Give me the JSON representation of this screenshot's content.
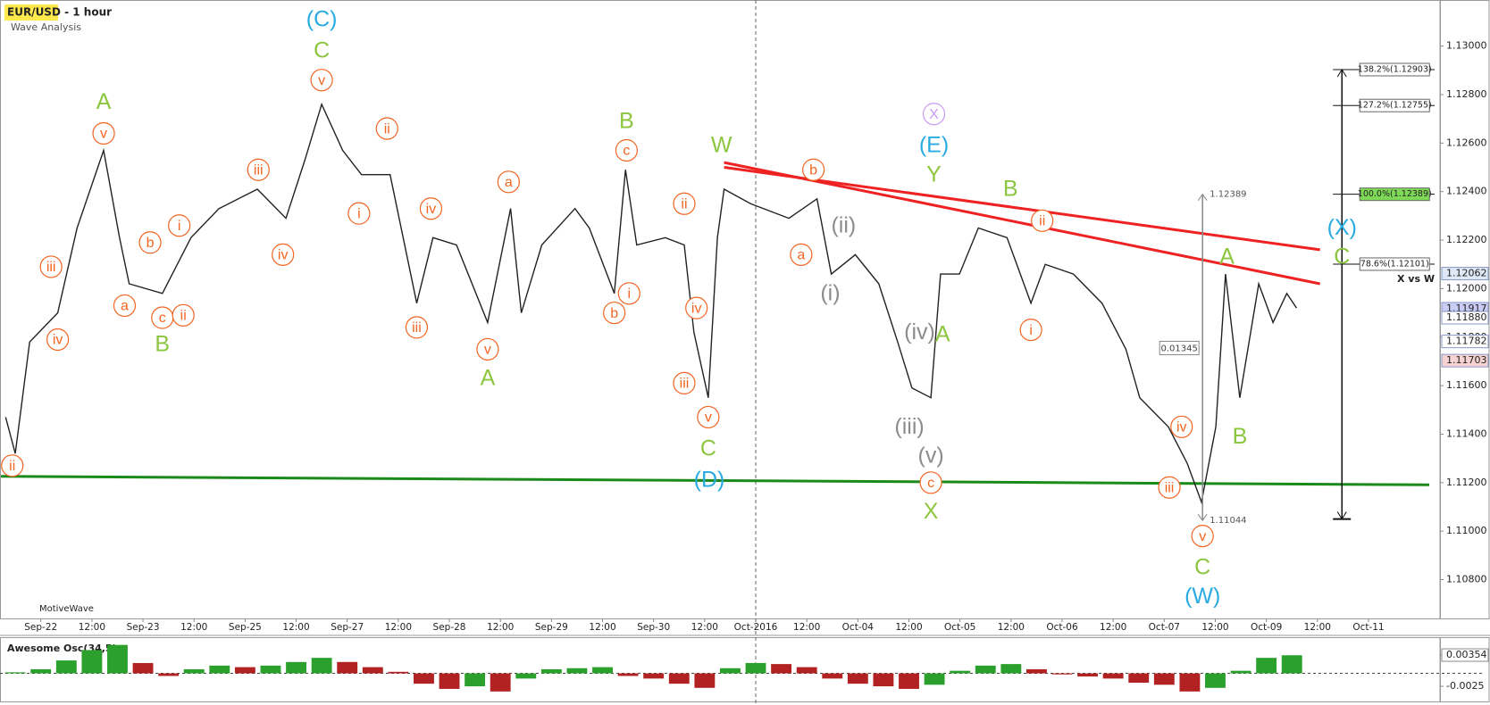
{
  "chart_data": [
    {
      "type": "line",
      "title": "EUR/USD - 1 hour",
      "subtitle": "Wave Analysis",
      "watermark": "MotiveWave",
      "color": "#222222",
      "xlim": [
        -0.8,
        27.4
      ],
      "ylim": [
        1.1064,
        1.1319
      ],
      "xticks": [
        {
          "value": 0,
          "label": "Sep-22"
        },
        {
          "value": 1,
          "label": "12:00"
        },
        {
          "value": 2,
          "label": "Sep-23"
        },
        {
          "value": 3,
          "label": "12:00"
        },
        {
          "value": 4,
          "label": "Sep-25"
        },
        {
          "value": 5,
          "label": "12:00"
        },
        {
          "value": 6,
          "label": "Sep-27"
        },
        {
          "value": 7,
          "label": "12:00"
        },
        {
          "value": 8,
          "label": "Sep-28"
        },
        {
          "value": 9,
          "label": "12:00"
        },
        {
          "value": 10,
          "label": "Sep-29"
        },
        {
          "value": 11,
          "label": "12:00"
        },
        {
          "value": 12,
          "label": "Sep-30"
        },
        {
          "value": 13,
          "label": "12:00"
        },
        {
          "value": 14,
          "label": "Oct-2016"
        },
        {
          "value": 15,
          "label": "12:00"
        },
        {
          "value": 16,
          "label": "Oct-04"
        },
        {
          "value": 17,
          "label": "12:00"
        },
        {
          "value": 18,
          "label": "Oct-05"
        },
        {
          "value": 19,
          "label": "12:00"
        },
        {
          "value": 20,
          "label": "Oct-06"
        },
        {
          "value": 21,
          "label": "12:00"
        },
        {
          "value": 22,
          "label": "Oct-07"
        },
        {
          "value": 23,
          "label": "12:00"
        },
        {
          "value": 24,
          "label": "Oct-09"
        },
        {
          "value": 25,
          "label": "12:00"
        },
        {
          "value": 26,
          "label": "Oct-11"
        }
      ],
      "session_tick": 14,
      "yticks": [
        {
          "value": 1.108,
          "label": "1.10800"
        },
        {
          "value": 1.11,
          "label": "1.11000"
        },
        {
          "value": 1.112,
          "label": "1.11200"
        },
        {
          "value": 1.114,
          "label": "1.11400"
        },
        {
          "value": 1.116,
          "label": "1.11600"
        },
        {
          "value": 1.118,
          "label": "1.11800"
        },
        {
          "value": 1.12,
          "label": "1.12000"
        },
        {
          "value": 1.122,
          "label": "1.12200"
        },
        {
          "value": 1.124,
          "label": "1.12400"
        },
        {
          "value": 1.126,
          "label": "1.12600"
        },
        {
          "value": 1.128,
          "label": "1.12800"
        },
        {
          "value": 1.13,
          "label": "1.13000"
        }
      ],
      "x": [
        -0.69,
        -0.5,
        -0.22,
        0.33,
        0.71,
        1.23,
        1.54,
        1.73,
        2.38,
        2.94,
        3.49,
        4.24,
        4.8,
        5.17,
        5.5,
        5.91,
        6.28,
        6.84,
        7.36,
        7.68,
        8.14,
        8.75,
        9.2,
        9.41,
        9.81,
        10.46,
        10.74,
        11.23,
        11.45,
        11.67,
        12.23,
        12.6,
        12.79,
        13.07,
        13.25,
        13.38,
        13.9,
        14.65,
        15.2,
        15.48,
        15.95,
        16.41,
        16.78,
        17.06,
        17.43,
        17.62,
        17.99,
        18.36,
        18.92,
        19.39,
        19.67,
        20.22,
        20.78,
        21.25,
        21.52,
        22.08,
        22.45,
        22.73,
        23.01,
        23.2,
        23.48,
        23.85,
        24.13,
        24.4,
        24.59
      ],
      "values": [
        1.1147,
        1.1132,
        1.1178,
        1.119,
        1.1225,
        1.1257,
        1.1221,
        1.1202,
        1.1198,
        1.1221,
        1.1233,
        1.1241,
        1.1229,
        1.1253,
        1.1276,
        1.1257,
        1.1247,
        1.1247,
        1.1194,
        1.1221,
        1.1218,
        1.1186,
        1.1233,
        1.119,
        1.1218,
        1.1233,
        1.1225,
        1.1198,
        1.1249,
        1.1218,
        1.1221,
        1.1218,
        1.1182,
        1.1155,
        1.1221,
        1.1241,
        1.1235,
        1.1229,
        1.1237,
        1.1206,
        1.1214,
        1.1202,
        1.1178,
        1.1159,
        1.1155,
        1.1206,
        1.1206,
        1.1225,
        1.1221,
        1.1194,
        1.121,
        1.1206,
        1.1194,
        1.1175,
        1.1155,
        1.1143,
        1.1128,
        1.1112,
        1.1143,
        1.1206,
        1.1155,
        1.1202,
        1.1186,
        1.1198,
        1.1192
      ],
      "trend_lines": [
        {
          "color": "#ee2222",
          "x": [
            13.38,
            25.05
          ],
          "values": [
            1.1252,
            1.1202
          ]
        },
        {
          "color": "#ee2222",
          "x": [
            13.38,
            25.05
          ],
          "values": [
            1.125,
            1.1216
          ]
        },
        {
          "color": "#1a8a1a",
          "x": [
            -0.78,
            27.19
          ],
          "values": [
            1.11226,
            1.11191
          ]
        }
      ],
      "annotations": [
        {
          "text": "ii",
          "x": -0.56,
          "y": 1.1127,
          "color": "#f26522",
          "circled": true
        },
        {
          "text": "iii",
          "x": 0.2,
          "y": 1.1209,
          "color": "#f26522",
          "circled": true
        },
        {
          "text": "iv",
          "x": 0.33,
          "y": 1.1179,
          "color": "#f26522",
          "circled": true
        },
        {
          "text": "A",
          "x": 1.23,
          "y": 1.1277,
          "color": "#8cc63f",
          "circled": false
        },
        {
          "text": "v",
          "x": 1.23,
          "y": 1.1264,
          "color": "#f26522",
          "circled": true
        },
        {
          "text": "a",
          "x": 1.64,
          "y": 1.1193,
          "color": "#f26522",
          "circled": true
        },
        {
          "text": "b",
          "x": 2.14,
          "y": 1.1219,
          "color": "#f26522",
          "circled": true
        },
        {
          "text": "c",
          "x": 2.38,
          "y": 1.1188,
          "color": "#f26522",
          "circled": true
        },
        {
          "text": "ii",
          "x": 2.79,
          "y": 1.1189,
          "color": "#f26522",
          "circled": true
        },
        {
          "text": "i",
          "x": 2.71,
          "y": 1.1226,
          "color": "#f26522",
          "circled": true
        },
        {
          "text": "B",
          "x": 2.38,
          "y": 1.1177,
          "color": "#8cc63f",
          "circled": false
        },
        {
          "text": "iii",
          "x": 4.26,
          "y": 1.1249,
          "color": "#f26522",
          "circled": true
        },
        {
          "text": "iv",
          "x": 4.74,
          "y": 1.1214,
          "color": "#f26522",
          "circled": true
        },
        {
          "text": "(C)",
          "x": 5.5,
          "y": 1.1311,
          "color": "#29abe2",
          "circled": false
        },
        {
          "text": "C",
          "x": 5.5,
          "y": 1.1298,
          "color": "#8cc63f",
          "circled": false
        },
        {
          "text": "v",
          "x": 5.5,
          "y": 1.1286,
          "color": "#f26522",
          "circled": true
        },
        {
          "text": "i",
          "x": 6.23,
          "y": 1.1231,
          "color": "#f26522",
          "circled": true
        },
        {
          "text": "ii",
          "x": 6.78,
          "y": 1.1266,
          "color": "#f26522",
          "circled": true
        },
        {
          "text": "iii",
          "x": 7.36,
          "y": 1.1184,
          "color": "#f26522",
          "circled": true
        },
        {
          "text": "iv",
          "x": 7.64,
          "y": 1.1233,
          "color": "#f26522",
          "circled": true
        },
        {
          "text": "v",
          "x": 8.75,
          "y": 1.1175,
          "color": "#f26522",
          "circled": true
        },
        {
          "text": "A",
          "x": 8.75,
          "y": 1.1163,
          "color": "#8cc63f",
          "circled": false
        },
        {
          "text": "a",
          "x": 9.16,
          "y": 1.1244,
          "color": "#f26522",
          "circled": true
        },
        {
          "text": "B",
          "x": 11.47,
          "y": 1.1269,
          "color": "#8cc63f",
          "circled": false
        },
        {
          "text": "c",
          "x": 11.47,
          "y": 1.1257,
          "color": "#f26522",
          "circled": true
        },
        {
          "text": "b",
          "x": 11.23,
          "y": 1.119,
          "color": "#f26522",
          "circled": true
        },
        {
          "text": "i",
          "x": 11.52,
          "y": 1.1198,
          "color": "#f26522",
          "circled": true
        },
        {
          "text": "ii",
          "x": 12.6,
          "y": 1.1235,
          "color": "#f26522",
          "circled": true
        },
        {
          "text": "iv",
          "x": 12.84,
          "y": 1.1192,
          "color": "#f26522",
          "circled": true
        },
        {
          "text": "iii",
          "x": 12.6,
          "y": 1.1161,
          "color": "#f26522",
          "circled": true
        },
        {
          "text": "v",
          "x": 13.07,
          "y": 1.1147,
          "color": "#f26522",
          "circled": true
        },
        {
          "text": "C",
          "x": 13.07,
          "y": 1.1134,
          "color": "#8cc63f",
          "circled": false
        },
        {
          "text": "(D)",
          "x": 13.09,
          "y": 1.1121,
          "color": "#29abe2",
          "circled": false
        },
        {
          "text": "W",
          "x": 13.33,
          "y": 1.1259,
          "color": "#8cc63f",
          "circled": false
        },
        {
          "text": "b",
          "x": 15.13,
          "y": 1.1249,
          "color": "#f26522",
          "circled": true
        },
        {
          "text": "a",
          "x": 14.89,
          "y": 1.1214,
          "color": "#f26522",
          "circled": true
        },
        {
          "text": "(ii)",
          "x": 15.72,
          "y": 1.1226,
          "color": "#8c8c8c",
          "circled": false
        },
        {
          "text": "(i)",
          "x": 15.46,
          "y": 1.1198,
          "color": "#8c8c8c",
          "circled": false
        },
        {
          "text": "X",
          "x": 17.49,
          "y": 1.1272,
          "color": "#c89af0",
          "circled": true
        },
        {
          "text": "(E)",
          "x": 17.49,
          "y": 1.1259,
          "color": "#29abe2",
          "circled": false
        },
        {
          "text": "Y",
          "x": 17.49,
          "y": 1.1247,
          "color": "#8cc63f",
          "circled": false
        },
        {
          "text": "(iv)",
          "x": 17.21,
          "y": 1.1182,
          "color": "#8c8c8c",
          "circled": false
        },
        {
          "text": "A",
          "x": 17.66,
          "y": 1.1181,
          "color": "#8cc63f",
          "circled": false
        },
        {
          "text": "(iii)",
          "x": 17.01,
          "y": 1.1143,
          "color": "#8c8c8c",
          "circled": false
        },
        {
          "text": "(v)",
          "x": 17.43,
          "y": 1.1131,
          "color": "#8c8c8c",
          "circled": false
        },
        {
          "text": "c",
          "x": 17.43,
          "y": 1.112,
          "color": "#f26522",
          "circled": true
        },
        {
          "text": "X",
          "x": 17.43,
          "y": 1.1108,
          "color": "#8cc63f",
          "circled": false
        },
        {
          "text": "B",
          "x": 18.99,
          "y": 1.1241,
          "color": "#8cc63f",
          "circled": false
        },
        {
          "text": "ii",
          "x": 19.61,
          "y": 1.1228,
          "color": "#f26522",
          "circled": true
        },
        {
          "text": "i",
          "x": 19.39,
          "y": 1.1183,
          "color": "#f26522",
          "circled": true
        },
        {
          "text": "iv",
          "x": 22.34,
          "y": 1.1143,
          "color": "#f26522",
          "circled": true
        },
        {
          "text": "iii",
          "x": 22.1,
          "y": 1.1118,
          "color": "#f26522",
          "circled": true
        },
        {
          "text": "v",
          "x": 22.75,
          "y": 1.1098,
          "color": "#f26522",
          "circled": true
        },
        {
          "text": "C",
          "x": 22.75,
          "y": 1.1085,
          "color": "#8cc63f",
          "circled": false
        },
        {
          "text": "(W)",
          "x": 22.75,
          "y": 1.1073,
          "color": "#29abe2",
          "circled": false
        },
        {
          "text": "A",
          "x": 23.23,
          "y": 1.1213,
          "color": "#8cc63f",
          "circled": false
        },
        {
          "text": "B",
          "x": 23.48,
          "y": 1.1139,
          "color": "#8cc63f",
          "circled": false
        },
        {
          "text": "(X)",
          "x": 25.48,
          "y": 1.1225,
          "color": "#29abe2",
          "circled": false
        },
        {
          "text": "C",
          "x": 25.48,
          "y": 1.1213,
          "color": "#8cc63f",
          "circled": false
        }
      ],
      "measure": {
        "x": 22.75,
        "high": 1.12389,
        "low": 1.11044,
        "range": 0.01345
      },
      "fibonacci": {
        "name": "X vs W",
        "x": 25.48,
        "low": 1.1105,
        "levels": [
          {
            "value": 1.12903,
            "label": "138.2%(1.12903)",
            "fill": "#ffffff"
          },
          {
            "value": 1.12755,
            "label": "127.2%(1.12755)",
            "fill": "#ffffff"
          },
          {
            "value": 1.12389,
            "label": "100.0%(1.12389)",
            "fill": "#7ed957"
          },
          {
            "value": 1.12101,
            "label": "78.6%(1.12101)",
            "fill": "#ffffff"
          }
        ]
      },
      "price_tags": [
        {
          "value": 1.12062,
          "label": "1.12062",
          "color": "#dfe8f7"
        },
        {
          "value": 1.11917,
          "label": "1.11917",
          "color": "#c9cdf5"
        },
        {
          "value": 1.1188,
          "label": "1.11880",
          "color": "#ffffff"
        },
        {
          "value": 1.11782,
          "label": "1.11782",
          "color": "#ffffff"
        },
        {
          "value": 1.11703,
          "label": "1.11703",
          "color": "#f6d2d2"
        }
      ]
    },
    {
      "type": "bar",
      "title": "Awesome Osc(34,5)",
      "xlim": [
        -0.8,
        27.4
      ],
      "ylim": [
        -0.00525,
        0.00665
      ],
      "yticks": [
        0.00354,
        -0.0025
      ],
      "up_color": "#2ca02c",
      "down_color": "#b22222",
      "x": [
        -0.5,
        0,
        0.5,
        1,
        1.5,
        2,
        2.5,
        3,
        3.5,
        4,
        4.5,
        5,
        5.5,
        6,
        6.5,
        7,
        7.5,
        8,
        8.5,
        9,
        9.5,
        10,
        10.5,
        11,
        11.5,
        12,
        12.5,
        13,
        13.5,
        14,
        14.5,
        15,
        15.5,
        16,
        16.5,
        17,
        17.5,
        18,
        18.5,
        19,
        19.5,
        20,
        20.5,
        21,
        21.5,
        22,
        22.5,
        23,
        23.5,
        24,
        24.5
      ],
      "values": [
        0.0002,
        0.0008,
        0.0025,
        0.0045,
        0.0055,
        0.002,
        -0.0005,
        0.0008,
        0.0015,
        0.0012,
        0.0015,
        0.0022,
        0.003,
        0.0022,
        0.0012,
        0.0003,
        -0.002,
        -0.003,
        -0.0025,
        -0.0035,
        -0.001,
        0.0008,
        0.001,
        0.0012,
        -0.0005,
        -0.001,
        -0.002,
        -0.0028,
        0.001,
        0.002,
        0.0018,
        0.0012,
        -0.001,
        -0.002,
        -0.0025,
        -0.003,
        -0.0022,
        0.0005,
        0.0015,
        0.0018,
        0.0008,
        -0.0002,
        -0.0006,
        -0.001,
        -0.0018,
        -0.0022,
        -0.0035,
        -0.0028,
        0.0005,
        0.003,
        0.0035
      ]
    }
  ]
}
